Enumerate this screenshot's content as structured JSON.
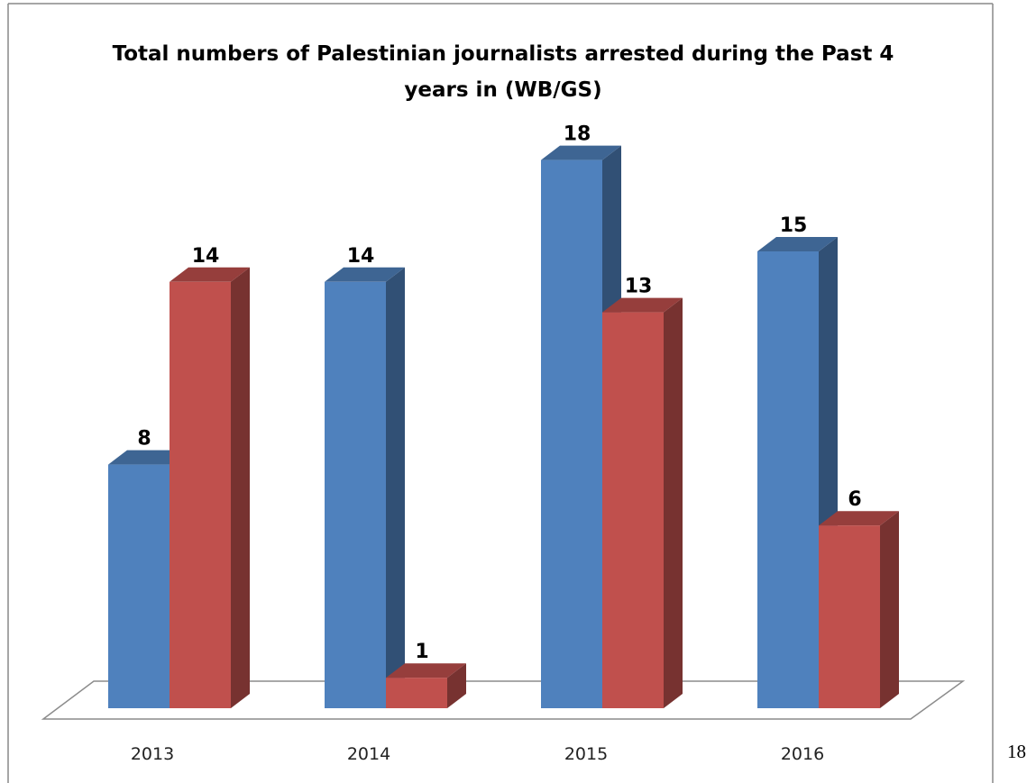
{
  "chart_data": {
    "type": "bar",
    "title_lines": [
      "Total numbers of Palestinian journalists arrested during the Past 4",
      "years in (WB/GS)"
    ],
    "categories": [
      "2013",
      "2014",
      "2015",
      "2016"
    ],
    "series": [
      {
        "values": [
          8,
          14,
          18,
          15
        ],
        "color": "#4F81BD"
      },
      {
        "values": [
          14,
          1,
          13,
          6
        ],
        "color": "#C0504D"
      }
    ],
    "ylim": [
      0,
      18
    ],
    "grid": false,
    "legend": "none",
    "three_d": true
  },
  "page_number": "18"
}
